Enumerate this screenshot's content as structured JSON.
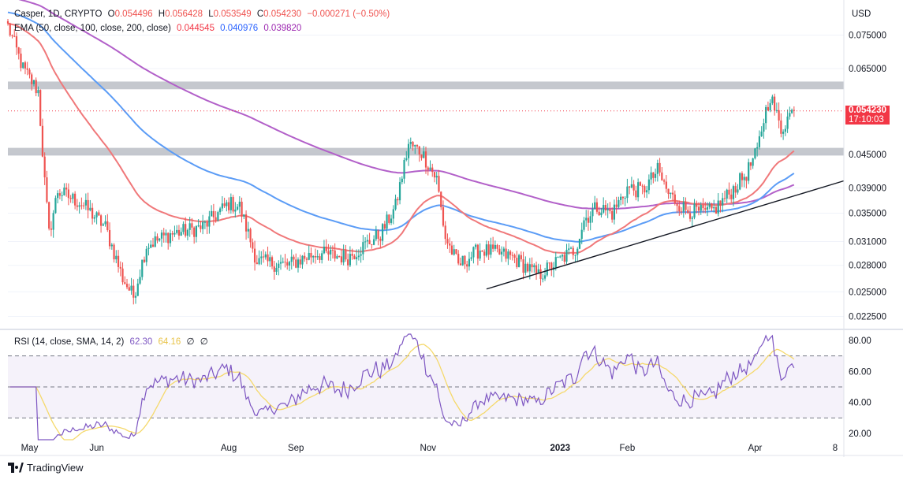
{
  "header": {
    "symbol": "Casper, 1D, CRYPTO",
    "o_label": "O",
    "o_value": "0.054496",
    "h_label": "H",
    "h_value": "0.056428",
    "l_label": "L",
    "l_value": "0.053549",
    "c_label": "C",
    "c_value": "0.054230",
    "change": "−0.000271 (−0.50%)",
    "ema_label": "EMA (50, close, 100, close, 200, close)",
    "ema50_value": "0.044545",
    "ema100_value": "0.040976",
    "ema200_value": "0.039820"
  },
  "rsi_header": {
    "label": "RSI (14, close, SMA, 14, 2)",
    "rsi_value": "62.30",
    "sma_value": "64.16",
    "extra1": "∅",
    "extra2": "∅"
  },
  "currency": "USD",
  "current_price": {
    "price": "0.054230",
    "countdown": "17:10:03"
  },
  "footer": {
    "brand": "TradingView"
  },
  "colors": {
    "up": "#26a69a",
    "down": "#ef5350",
    "ema50": "#f0787a",
    "ema100": "#5b9cf6",
    "ema200": "#b260c9",
    "rsi": "#7e57c2",
    "rsi_sma": "#f5d96b",
    "zone": "#b2b5be",
    "trendline": "#131722",
    "price_label": "#f23645"
  },
  "chart_data": [
    {
      "type": "candlestick",
      "title": "Casper, 1D, CRYPTO",
      "y_scale": "log",
      "ylim": [
        0.0215,
        0.0815
      ],
      "y_ticks": [
        "0.075000",
        "0.065000",
        "0.054230",
        "0.045000",
        "0.039000",
        "0.035000",
        "0.031000",
        "0.028000",
        "0.025000",
        "0.022500"
      ],
      "x_ticks": [
        "May",
        "Jun",
        "Aug",
        "Sep",
        "Nov",
        "2023",
        "Feb",
        "Apr",
        "8"
      ],
      "x_range": [
        "2022-04-21",
        "2023-05-12"
      ],
      "last_close": 0.05423,
      "resistance_zones": [
        {
          "from": 0.0595,
          "to": 0.0615
        },
        {
          "from": 0.0448,
          "to": 0.0463
        }
      ],
      "trendline": [
        {
          "date": "2022-11-28",
          "price": 0.0253
        },
        {
          "date": "2023-05-12",
          "price": 0.0402
        }
      ],
      "price_anchors": [
        [
          "2022-04-21",
          0.078
        ],
        [
          "2022-04-28",
          0.065
        ],
        [
          "2022-05-05",
          0.059
        ],
        [
          "2022-05-08",
          0.04
        ],
        [
          "2022-05-10",
          0.032
        ],
        [
          "2022-05-14",
          0.0385
        ],
        [
          "2022-05-25",
          0.0365
        ],
        [
          "2022-06-05",
          0.033
        ],
        [
          "2022-06-13",
          0.0265
        ],
        [
          "2022-06-18",
          0.0245
        ],
        [
          "2022-06-24",
          0.0305
        ],
        [
          "2022-07-05",
          0.032
        ],
        [
          "2022-07-20",
          0.033
        ],
        [
          "2022-08-01",
          0.0365
        ],
        [
          "2022-08-06",
          0.036
        ],
        [
          "2022-08-14",
          0.0285
        ],
        [
          "2022-08-28",
          0.028
        ],
        [
          "2022-09-10",
          0.0295
        ],
        [
          "2022-09-25",
          0.029
        ],
        [
          "2022-10-10",
          0.032
        ],
        [
          "2022-10-17",
          0.036
        ],
        [
          "2022-10-23",
          0.047
        ],
        [
          "2022-10-29",
          0.0455
        ],
        [
          "2022-11-05",
          0.0405
        ],
        [
          "2022-11-09",
          0.0315
        ],
        [
          "2022-11-15",
          0.028
        ],
        [
          "2022-11-25",
          0.03
        ],
        [
          "2022-12-10",
          0.029
        ],
        [
          "2022-12-22",
          0.0268
        ],
        [
          "2022-12-31",
          0.0285
        ],
        [
          "2023-01-08",
          0.03
        ],
        [
          "2023-01-12",
          0.034
        ],
        [
          "2023-01-18",
          0.036
        ],
        [
          "2023-01-25",
          0.035
        ],
        [
          "2023-02-01",
          0.039
        ],
        [
          "2023-02-08",
          0.0385
        ],
        [
          "2023-02-15",
          0.042
        ],
        [
          "2023-02-20",
          0.038
        ],
        [
          "2023-02-28",
          0.0355
        ],
        [
          "2023-03-09",
          0.035
        ],
        [
          "2023-03-13",
          0.0355
        ],
        [
          "2023-03-20",
          0.038
        ],
        [
          "2023-03-28",
          0.0415
        ],
        [
          "2023-04-02",
          0.0455
        ],
        [
          "2023-04-05",
          0.0525
        ],
        [
          "2023-04-08",
          0.058
        ],
        [
          "2023-04-13",
          0.05
        ],
        [
          "2023-04-17",
          0.0535
        ],
        [
          "2023-04-19",
          0.0542
        ]
      ]
    },
    {
      "type": "line",
      "title": "RSI (14, close, SMA, 14, 2)",
      "ylim": [
        15,
        85
      ],
      "y_ticks": [
        "80.00",
        "60.00",
        "40.00",
        "20.00"
      ],
      "levels": [
        70,
        50,
        30
      ],
      "last_rsi": 62.3,
      "last_sma": 64.16
    }
  ]
}
